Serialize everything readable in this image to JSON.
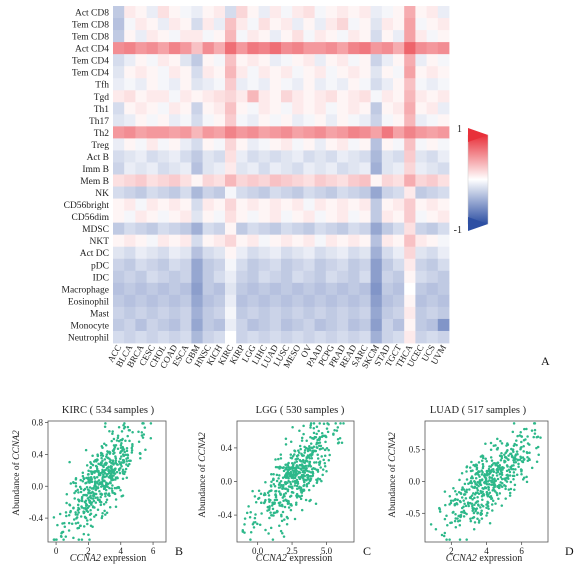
{
  "panel_labels": [
    "A",
    "B",
    "C",
    "D"
  ],
  "heatmap": {
    "rows": [
      "Act CD8",
      "Tem CD8",
      "Tem CD8",
      "Act CD4",
      "Tem CD4",
      "Tem CD4",
      "Tfh",
      "Tgd",
      "Th1",
      "Th17",
      "Th2",
      "Treg",
      "Act B",
      "Imm B",
      "Mem B",
      "NK",
      "CD56bright",
      "CD56dim",
      "MDSC",
      "NKT",
      "Act DC",
      "pDC",
      "IDC",
      "Macrophage",
      "Eosinophil",
      "Mast",
      "Monocyte",
      "Neutrophil"
    ],
    "columns": [
      "ACC",
      "BLCA",
      "BRCA",
      "CESC",
      "CHOL",
      "COAD",
      "ESCA",
      "GBM",
      "HNSC",
      "KICH",
      "KIRC",
      "KIRP",
      "LGG",
      "LIHC",
      "LUAD",
      "LUSC",
      "MESO",
      "OV",
      "PAAD",
      "PCPG",
      "PRAD",
      "READ",
      "SARC",
      "SKCM",
      "STAD",
      "TGCT",
      "THCA",
      "UCEC",
      "UCS",
      "UVM"
    ],
    "colorbar": {
      "max_label": "1",
      "min_label": "-1",
      "high_color": "#e8303a",
      "mid_color": "#ffffff",
      "low_color": "#2d4fa3"
    }
  },
  "scatter_panels": [
    {
      "title": "KIRC ( 534 samples )",
      "xlabel_gene": "CCNA2",
      "xlabel_rest": " expression",
      "ylabel_prefix": "Abundance of ",
      "ylabel_gene": "CCNA2",
      "xticks": [
        "0",
        "2",
        "4",
        "6"
      ],
      "yticks": [
        "0.8",
        "0.4",
        "0.0",
        "-0.4"
      ]
    },
    {
      "title": "LGG ( 530 samples )",
      "xlabel_gene": "CCNA2",
      "xlabel_rest": " expression",
      "ylabel_prefix": "Abundance of ",
      "ylabel_gene": "CCNA2",
      "xticks": [
        "0.0",
        "2.5",
        "5.0"
      ],
      "yticks": [
        "0.4",
        "0.0",
        "-0.4"
      ]
    },
    {
      "title": "LUAD ( 517 samples )",
      "xlabel_gene": "CCNA2",
      "xlabel_rest": " expression",
      "ylabel_prefix": "Abundance of ",
      "ylabel_gene": "CCNA2",
      "xticks": [
        "2",
        "4",
        "6"
      ],
      "yticks": [
        "0.5",
        "0.0",
        "-0.5"
      ]
    }
  ],
  "chart_data": [
    {
      "type": "heatmap",
      "title": "",
      "rows": [
        "Act CD8",
        "Tem CD8",
        "Tem CD8",
        "Act CD4",
        "Tem CD4",
        "Tem CD4",
        "Tfh",
        "Tgd",
        "Th1",
        "Th17",
        "Th2",
        "Treg",
        "Act B",
        "Imm B",
        "Mem B",
        "NK",
        "CD56bright",
        "CD56dim",
        "MDSC",
        "NKT",
        "Act DC",
        "pDC",
        "IDC",
        "Macrophage",
        "Eosinophil",
        "Mast",
        "Monocyte",
        "Neutrophil"
      ],
      "columns": [
        "ACC",
        "BLCA",
        "BRCA",
        "CESC",
        "CHOL",
        "COAD",
        "ESCA",
        "GBM",
        "HNSC",
        "KICH",
        "KIRC",
        "KIRP",
        "LGG",
        "LIHC",
        "LUAD",
        "LUSC",
        "MESO",
        "OV",
        "PAAD",
        "PCPG",
        "PRAD",
        "READ",
        "SARC",
        "SKCM",
        "STAD",
        "TGCT",
        "THCA",
        "UCEC",
        "UCS",
        "UVM"
      ],
      "value_range": [
        -1,
        1
      ],
      "values": [
        [
          -0.3,
          0.1,
          0.05,
          -0.1,
          0.15,
          0.05,
          -0.05,
          -0.1,
          0.05,
          0.1,
          -0.2,
          0.2,
          0.05,
          -0.1,
          0.1,
          -0.05,
          0.1,
          0.15,
          -0.05,
          0.05,
          0.1,
          0.05,
          0.1,
          -0.1,
          -0.05,
          0.05,
          0.4,
          0.05,
          0.1,
          -0.1
        ],
        [
          -0.35,
          -0.05,
          0.1,
          0.05,
          -0.1,
          0.1,
          0.05,
          -0.2,
          0.1,
          -0.1,
          0.3,
          0.1,
          -0.05,
          0.15,
          0.05,
          0.1,
          -0.1,
          0.05,
          -0.1,
          0.1,
          0.2,
          -0.05,
          0.05,
          -0.15,
          0.1,
          0.05,
          0.45,
          -0.05,
          0.05,
          0.1
        ],
        [
          -0.3,
          0.05,
          -0.1,
          0.1,
          0.05,
          -0.05,
          0.1,
          0.1,
          -0.05,
          0.05,
          0.35,
          -0.05,
          0.1,
          0.05,
          -0.1,
          0.05,
          0.15,
          -0.05,
          0.1,
          0.05,
          -0.05,
          0.1,
          0.05,
          -0.2,
          0.05,
          -0.1,
          0.45,
          0.1,
          -0.05,
          0.05
        ],
        [
          0.55,
          0.6,
          0.5,
          0.55,
          0.45,
          0.6,
          0.5,
          0.3,
          0.55,
          0.4,
          0.7,
          0.5,
          0.65,
          0.6,
          0.7,
          0.55,
          0.6,
          0.5,
          0.5,
          0.55,
          0.45,
          0.6,
          0.65,
          0.5,
          0.55,
          0.4,
          0.75,
          0.55,
          0.5,
          0.55
        ],
        [
          -0.2,
          -0.1,
          0.05,
          -0.05,
          0.1,
          0.05,
          -0.15,
          -0.3,
          0.05,
          -0.05,
          0.3,
          0.05,
          0.1,
          0.05,
          -0.1,
          -0.05,
          0.05,
          0.1,
          -0.1,
          0.05,
          0.1,
          -0.05,
          0.05,
          -0.25,
          -0.1,
          0.05,
          0.4,
          -0.1,
          0.05,
          -0.05
        ],
        [
          -0.15,
          0.05,
          0.1,
          0.05,
          -0.05,
          0.1,
          0.05,
          -0.2,
          0.1,
          0.05,
          0.35,
          0.1,
          -0.05,
          0.1,
          0.05,
          0.1,
          -0.05,
          0.05,
          0.1,
          -0.05,
          0.05,
          0.1,
          0.05,
          -0.15,
          0.05,
          -0.05,
          0.45,
          0.05,
          0.1,
          0.05
        ],
        [
          -0.1,
          -0.05,
          -0.1,
          0.05,
          -0.05,
          -0.1,
          0.05,
          -0.15,
          -0.1,
          -0.05,
          0.25,
          -0.1,
          -0.05,
          -0.1,
          0.05,
          -0.05,
          -0.1,
          0.05,
          -0.1,
          -0.05,
          -0.1,
          0.05,
          -0.05,
          -0.2,
          -0.1,
          0.05,
          0.3,
          -0.05,
          -0.1,
          -0.05
        ],
        [
          0.1,
          0.15,
          0.05,
          0.1,
          0.1,
          -0.05,
          0.1,
          0.05,
          0.1,
          0.15,
          0.2,
          0.1,
          0.35,
          0.1,
          0.05,
          0.2,
          0.1,
          0.05,
          0.1,
          0.15,
          0.05,
          0.1,
          0.15,
          -0.05,
          0.1,
          0.05,
          0.35,
          0.1,
          0.05,
          0.1
        ],
        [
          -0.2,
          0.05,
          0.1,
          0.05,
          -0.05,
          0.1,
          0.05,
          -0.25,
          0.05,
          0.1,
          0.3,
          0.05,
          -0.05,
          0.1,
          0.05,
          -0.05,
          0.1,
          0.05,
          0.1,
          -0.05,
          0.05,
          0.1,
          0.05,
          -0.3,
          0.05,
          0.1,
          0.4,
          0.05,
          0.1,
          -0.1
        ],
        [
          -0.15,
          -0.1,
          0.05,
          -0.05,
          0.05,
          -0.1,
          -0.05,
          -0.2,
          -0.05,
          0.05,
          0.25,
          -0.05,
          -0.1,
          0.05,
          -0.05,
          0.05,
          -0.1,
          -0.05,
          0.05,
          -0.1,
          0.05,
          -0.05,
          -0.1,
          -0.25,
          -0.05,
          0.05,
          0.35,
          -0.1,
          -0.05,
          0.05
        ],
        [
          0.5,
          0.55,
          0.45,
          0.5,
          0.5,
          0.45,
          0.5,
          0.35,
          0.5,
          0.45,
          0.6,
          0.5,
          0.55,
          0.45,
          0.5,
          0.55,
          0.45,
          0.5,
          0.55,
          0.45,
          0.5,
          0.6,
          0.55,
          0.45,
          0.65,
          0.45,
          0.6,
          0.5,
          0.45,
          0.5
        ],
        [
          -0.1,
          0.05,
          -0.05,
          0.1,
          -0.05,
          0.05,
          -0.1,
          -0.2,
          0.05,
          -0.05,
          0.2,
          0.05,
          -0.1,
          -0.05,
          0.05,
          0.1,
          -0.05,
          0.05,
          -0.1,
          0.05,
          0.1,
          -0.05,
          0.05,
          -0.35,
          0.05,
          -0.05,
          0.3,
          -0.05,
          0.05,
          -0.05
        ],
        [
          -0.2,
          -0.15,
          -0.1,
          -0.2,
          -0.15,
          -0.1,
          -0.2,
          -0.3,
          -0.15,
          -0.2,
          0.15,
          -0.1,
          -0.2,
          -0.15,
          -0.2,
          -0.15,
          -0.1,
          -0.2,
          -0.15,
          -0.2,
          -0.1,
          -0.15,
          -0.2,
          -0.4,
          -0.15,
          -0.2,
          0.25,
          -0.15,
          -0.2,
          -0.1
        ],
        [
          -0.25,
          -0.1,
          -0.15,
          -0.1,
          -0.2,
          -0.15,
          -0.1,
          -0.35,
          -0.15,
          -0.1,
          0.1,
          -0.15,
          -0.1,
          -0.2,
          -0.1,
          -0.15,
          -0.2,
          -0.1,
          -0.15,
          -0.1,
          -0.2,
          -0.15,
          -0.1,
          -0.45,
          -0.15,
          -0.1,
          0.2,
          -0.1,
          -0.15,
          -0.2
        ],
        [
          0.15,
          0.2,
          0.25,
          0.15,
          0.2,
          0.25,
          0.15,
          0.05,
          0.2,
          0.15,
          0.35,
          0.2,
          0.25,
          0.2,
          0.3,
          0.25,
          0.2,
          0.15,
          0.25,
          0.2,
          0.15,
          0.25,
          0.3,
          0.05,
          0.2,
          0.15,
          0.4,
          0.2,
          0.25,
          0.15
        ],
        [
          -0.2,
          -0.25,
          -0.3,
          -0.2,
          -0.25,
          -0.3,
          -0.2,
          -0.4,
          -0.25,
          -0.3,
          -0.05,
          -0.2,
          -0.25,
          -0.3,
          -0.2,
          -0.25,
          -0.3,
          -0.2,
          -0.25,
          -0.3,
          -0.2,
          -0.25,
          -0.3,
          -0.5,
          -0.25,
          -0.2,
          0.1,
          -0.3,
          -0.25,
          -0.2
        ],
        [
          0.05,
          0.1,
          -0.05,
          0.1,
          0.05,
          0.1,
          0.05,
          -0.2,
          0.1,
          0.05,
          0.2,
          0.05,
          0.1,
          0.05,
          0.1,
          0.05,
          0.1,
          -0.05,
          0.1,
          0.05,
          0.1,
          0.05,
          0.1,
          -0.3,
          0.05,
          0.1,
          0.25,
          0.05,
          0.1,
          0.05
        ],
        [
          0.05,
          -0.05,
          0.1,
          0.05,
          -0.05,
          0.05,
          0.1,
          -0.15,
          0.05,
          -0.05,
          0.15,
          0.05,
          -0.05,
          0.05,
          0.1,
          -0.05,
          0.05,
          0.1,
          -0.05,
          0.05,
          0.1,
          -0.05,
          0.05,
          -0.3,
          0.1,
          0.05,
          0.25,
          -0.05,
          0.05,
          0.1
        ],
        [
          -0.3,
          -0.2,
          -0.25,
          -0.3,
          -0.2,
          -0.25,
          -0.3,
          -0.45,
          -0.2,
          -0.25,
          0.05,
          -0.3,
          -0.2,
          -0.25,
          -0.3,
          -0.2,
          -0.25,
          -0.3,
          -0.2,
          -0.25,
          -0.3,
          -0.2,
          -0.25,
          -0.5,
          -0.3,
          -0.2,
          0.15,
          -0.25,
          -0.3,
          -0.2
        ],
        [
          0.05,
          0.1,
          0.05,
          -0.05,
          0.1,
          0.05,
          0.1,
          -0.2,
          0.05,
          0.1,
          0.2,
          0.05,
          0.1,
          -0.05,
          0.05,
          0.1,
          0.05,
          0.1,
          -0.05,
          0.1,
          0.05,
          0.1,
          0.05,
          -0.35,
          0.1,
          0.05,
          0.3,
          0.1,
          0.05,
          -0.05
        ],
        [
          -0.15,
          -0.2,
          -0.1,
          -0.15,
          -0.2,
          -0.1,
          -0.15,
          -0.35,
          -0.2,
          -0.15,
          0.05,
          -0.1,
          -0.2,
          -0.15,
          -0.1,
          -0.2,
          -0.15,
          -0.1,
          -0.2,
          -0.15,
          -0.1,
          -0.2,
          -0.15,
          -0.45,
          -0.2,
          -0.1,
          0.2,
          -0.15,
          -0.2,
          -0.1
        ],
        [
          -0.25,
          -0.3,
          -0.2,
          -0.25,
          -0.3,
          -0.2,
          -0.25,
          -0.5,
          -0.3,
          -0.25,
          -0.05,
          -0.2,
          -0.3,
          -0.25,
          -0.2,
          -0.3,
          -0.25,
          -0.2,
          -0.3,
          -0.25,
          -0.2,
          -0.3,
          -0.25,
          -0.55,
          -0.3,
          -0.2,
          0.1,
          -0.25,
          -0.3,
          -0.2
        ],
        [
          -0.3,
          -0.25,
          -0.3,
          -0.2,
          -0.25,
          -0.3,
          -0.25,
          -0.5,
          -0.3,
          -0.2,
          -0.1,
          -0.25,
          -0.3,
          -0.2,
          -0.25,
          -0.3,
          -0.2,
          -0.25,
          -0.3,
          -0.2,
          -0.25,
          -0.3,
          -0.2,
          -0.55,
          -0.25,
          -0.3,
          0.05,
          -0.2,
          -0.25,
          -0.3
        ],
        [
          -0.35,
          -0.3,
          -0.35,
          -0.3,
          -0.35,
          -0.3,
          -0.35,
          -0.55,
          -0.3,
          -0.35,
          -0.15,
          -0.3,
          -0.35,
          -0.3,
          -0.35,
          -0.3,
          -0.35,
          -0.3,
          -0.35,
          -0.3,
          -0.35,
          -0.3,
          -0.35,
          -0.6,
          -0.3,
          -0.35,
          0.0,
          -0.3,
          -0.35,
          -0.3
        ],
        [
          -0.3,
          -0.35,
          -0.3,
          -0.35,
          -0.3,
          -0.35,
          -0.3,
          -0.5,
          -0.35,
          -0.3,
          -0.1,
          -0.35,
          -0.3,
          -0.35,
          -0.3,
          -0.35,
          -0.3,
          -0.35,
          -0.3,
          -0.35,
          -0.3,
          -0.35,
          -0.3,
          -0.55,
          -0.35,
          -0.3,
          0.05,
          -0.35,
          -0.3,
          -0.35
        ],
        [
          -0.25,
          -0.3,
          -0.25,
          -0.3,
          -0.25,
          -0.3,
          -0.25,
          -0.45,
          -0.3,
          -0.25,
          -0.05,
          -0.3,
          -0.25,
          -0.3,
          -0.25,
          -0.3,
          -0.25,
          -0.3,
          -0.25,
          -0.3,
          -0.25,
          -0.3,
          -0.25,
          -0.5,
          -0.3,
          -0.25,
          0.1,
          -0.3,
          -0.25,
          -0.3
        ],
        [
          -0.3,
          -0.25,
          -0.35,
          -0.25,
          -0.3,
          -0.35,
          -0.25,
          -0.5,
          -0.3,
          -0.35,
          -0.1,
          -0.25,
          -0.35,
          -0.3,
          -0.25,
          -0.35,
          -0.3,
          -0.25,
          -0.35,
          -0.3,
          -0.25,
          -0.35,
          -0.3,
          -0.55,
          -0.25,
          -0.35,
          0.05,
          -0.3,
          -0.35,
          -0.6
        ],
        [
          -0.2,
          -0.25,
          -0.2,
          -0.25,
          -0.2,
          -0.25,
          -0.2,
          -0.4,
          -0.25,
          -0.2,
          0.0,
          -0.25,
          -0.2,
          -0.25,
          -0.2,
          -0.25,
          -0.2,
          -0.25,
          -0.2,
          -0.25,
          -0.2,
          -0.25,
          -0.2,
          -0.45,
          -0.25,
          -0.2,
          0.1,
          -0.25,
          -0.2,
          -0.25
        ]
      ]
    },
    {
      "type": "scatter",
      "title": "KIRC ( 534 samples )",
      "xlabel": "CCNA2 expression",
      "ylabel": "Abundance of CCNA2",
      "xlim": [
        -0.5,
        6.8
      ],
      "ylim": [
        -0.7,
        0.82
      ],
      "n_points": 534,
      "trend": {
        "x_center": 2.8,
        "x_spread": 1.1,
        "slope": 0.22,
        "intercept": -0.52,
        "noise": 0.22
      },
      "color": "#2db88a"
    },
    {
      "type": "scatter",
      "title": "LGG ( 530 samples )",
      "xlabel": "CCNA2 expression",
      "ylabel": "Abundance of CCNA2",
      "xlim": [
        -1.5,
        7.0
      ],
      "ylim": [
        -0.72,
        0.72
      ],
      "n_points": 530,
      "trend": {
        "x_center": 2.6,
        "x_spread": 1.4,
        "slope": 0.15,
        "intercept": -0.35,
        "noise": 0.2
      },
      "color": "#2db88a"
    },
    {
      "type": "scatter",
      "title": "LUAD ( 517 samples )",
      "xlabel": "CCNA2 expression",
      "ylabel": "Abundance of CCNA2",
      "xlim": [
        0.5,
        7.5
      ],
      "ylim": [
        -0.95,
        0.95
      ],
      "n_points": 517,
      "trend": {
        "x_center": 4.2,
        "x_spread": 1.2,
        "slope": 0.22,
        "intercept": -0.88,
        "noise": 0.25
      },
      "color": "#2db88a"
    }
  ]
}
